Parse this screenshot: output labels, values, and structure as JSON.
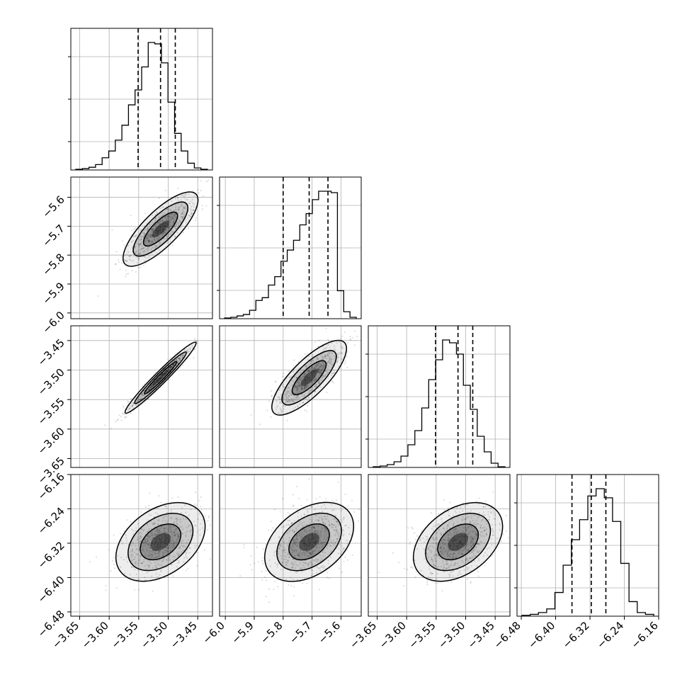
{
  "chart_data": {
    "type": "corner",
    "parameters": [
      {
        "hist": [
          1,
          2,
          4,
          8,
          18,
          28,
          44,
          66,
          96,
          118,
          152,
          188,
          186,
          158,
          100,
          54,
          28,
          10,
          3,
          1
        ],
        "quantiles": [
          -3.551,
          -3.513,
          -3.488
        ],
        "lim": [
          -3.665,
          -3.425
        ]
      },
      {
        "hist": [
          1,
          2,
          4,
          6,
          12,
          26,
          30,
          48,
          60,
          82,
          98,
          112,
          134,
          150,
          170,
          182,
          182,
          180,
          40,
          10,
          2
        ],
        "quantiles": [
          -5.8,
          -5.71,
          -5.645
        ],
        "lim": [
          -6.02,
          -5.53
        ]
      },
      {
        "hist": [
          1,
          2,
          4,
          8,
          16,
          32,
          52,
          84,
          124,
          152,
          180,
          176,
          160,
          116,
          82,
          44,
          22,
          6,
          1
        ],
        "quantiles": [
          -3.551,
          -3.513,
          -3.488
        ],
        "lim": [
          -3.665,
          -3.425
        ]
      },
      {
        "hist": [
          1,
          2,
          4,
          8,
          26,
          56,
          84,
          106,
          132,
          140,
          130,
          104,
          58,
          16,
          4,
          2
        ],
        "quantiles": [
          -6.362,
          -6.317,
          -6.283
        ],
        "lim": [
          -6.49,
          -6.16
        ]
      }
    ],
    "axis_ticks": [
      [
        "−3.65",
        "−3.60",
        "−3.55",
        "−3.50",
        "−3.45"
      ],
      [
        "−6.0",
        "−5.9",
        "−5.8",
        "−5.7",
        "−5.6"
      ],
      [
        "−3.65",
        "−3.60",
        "−3.55",
        "−3.50",
        "−3.45"
      ],
      [
        "−6.48",
        "−6.40",
        "−6.32",
        "−6.24",
        "−6.16"
      ]
    ],
    "axis_tick_values": [
      [
        -3.65,
        -3.6,
        -3.55,
        -3.5,
        -3.45
      ],
      [
        -6.0,
        -5.9,
        -5.8,
        -5.7,
        -5.6
      ],
      [
        -3.65,
        -3.6,
        -3.55,
        -3.5,
        -3.45
      ],
      [
        -6.48,
        -6.4,
        -6.32,
        -6.24,
        -6.16
      ]
    ],
    "grid": true,
    "pairs": [
      {
        "x": 0,
        "y": 1,
        "slope": 2.02,
        "spread": 0.35,
        "center": [
          -3.513,
          -5.71
        ]
      },
      {
        "x": 0,
        "y": 2,
        "slope": 1.0,
        "spread": 0.12,
        "center": [
          -3.513,
          -3.513
        ]
      },
      {
        "x": 1,
        "y": 2,
        "slope": 0.49,
        "spread": 0.35,
        "center": [
          -5.71,
          -3.513
        ]
      },
      {
        "x": 0,
        "y": 3,
        "slope": 1.0,
        "spread": 0.65,
        "center": [
          -3.513,
          -6.317
        ]
      },
      {
        "x": 1,
        "y": 3,
        "slope": 0.5,
        "spread": 0.65,
        "center": [
          -5.71,
          -6.317
        ]
      },
      {
        "x": 2,
        "y": 3,
        "slope": 1.0,
        "spread": 0.65,
        "center": [
          -3.513,
          -6.317
        ]
      }
    ],
    "colors": {
      "line": "#000000",
      "grid": "#b0b0b0",
      "points": "#000000"
    }
  }
}
